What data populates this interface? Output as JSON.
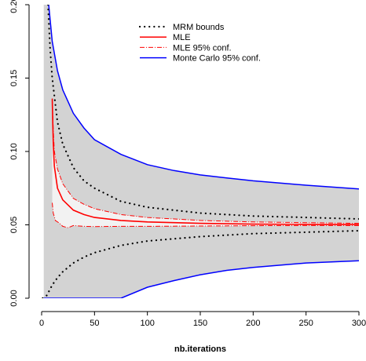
{
  "chart_data": {
    "type": "line",
    "title": "",
    "xlabel": "nb.iterations",
    "ylabel": "",
    "xlim": [
      0,
      300
    ],
    "ylim": [
      0,
      0.2
    ],
    "x_ticks": [
      "0",
      "50",
      "100",
      "150",
      "200",
      "250",
      "300"
    ],
    "y_ticks": [
      "0.00",
      "0.05",
      "0.10",
      "0.15",
      "0.20"
    ],
    "grid": false,
    "legend_position": "top-center",
    "colors": {
      "band_outer": "#d3d3d3",
      "band_inner": "#f2f2f2",
      "mrm": "#000000",
      "mle": "#ff0000",
      "mle_conf": "#ff0000",
      "mc": "#0000ff"
    },
    "legend": [
      {
        "label": "MRM bounds",
        "style": "dotted",
        "color": "#000000"
      },
      {
        "label": "MLE",
        "style": "solid",
        "color": "#ff0000"
      },
      {
        "label": "MLE 95% conf.",
        "style": "dashdot",
        "color": "#ff0000"
      },
      {
        "label": "Monte Carlo 95% conf.",
        "style": "solid",
        "color": "#0000ff"
      }
    ],
    "series": [
      {
        "name": "Monte Carlo 95% conf.",
        "role": "mc_upper",
        "x": [
          6,
          8,
          10,
          15,
          20,
          30,
          40,
          50,
          75,
          100,
          125,
          150,
          175,
          200,
          250,
          300
        ],
        "y": [
          0.205,
          0.19,
          0.175,
          0.155,
          0.142,
          0.126,
          0.116,
          0.108,
          0.098,
          0.091,
          0.087,
          0.084,
          0.082,
          0.08,
          0.077,
          0.0745
        ]
      },
      {
        "name": "Monte Carlo 95% conf.",
        "role": "mc_lower",
        "x": [
          2,
          75,
          100,
          125,
          150,
          175,
          200,
          250,
          300
        ],
        "y": [
          0,
          0,
          0.0075,
          0.012,
          0.016,
          0.019,
          0.021,
          0.024,
          0.0255
        ]
      },
      {
        "name": "MRM bounds",
        "role": "mrm_upper",
        "x": [
          6,
          8,
          10,
          15,
          20,
          30,
          40,
          50,
          75,
          100,
          150,
          200,
          250,
          300
        ],
        "y": [
          0.2,
          0.17,
          0.15,
          0.12,
          0.105,
          0.089,
          0.08,
          0.075,
          0.066,
          0.062,
          0.058,
          0.056,
          0.055,
          0.054
        ]
      },
      {
        "name": "MRM bounds",
        "role": "mrm_lower",
        "x": [
          1,
          5,
          10,
          15,
          20,
          30,
          40,
          50,
          75,
          100,
          150,
          200,
          250,
          300
        ],
        "y": [
          0,
          0.002,
          0.009,
          0.014,
          0.018,
          0.024,
          0.028,
          0.031,
          0.036,
          0.039,
          0.042,
          0.044,
          0.045,
          0.046
        ]
      },
      {
        "name": "MLE",
        "role": "mle",
        "x": [
          10,
          11,
          12,
          15,
          20,
          30,
          40,
          50,
          75,
          100,
          150,
          200,
          250,
          300
        ],
        "y": [
          0.136,
          0.105,
          0.09,
          0.075,
          0.067,
          0.06,
          0.057,
          0.055,
          0.053,
          0.052,
          0.051,
          0.0505,
          0.0503,
          0.0502
        ]
      },
      {
        "name": "MLE 95% conf.",
        "role": "mle_upper",
        "x": [
          10,
          11,
          12,
          15,
          20,
          30,
          40,
          50,
          75,
          100,
          150,
          200,
          250,
          300
        ],
        "y": [
          0.136,
          0.115,
          0.1,
          0.088,
          0.078,
          0.068,
          0.064,
          0.061,
          0.057,
          0.055,
          0.053,
          0.052,
          0.0515,
          0.051
        ]
      },
      {
        "name": "MLE 95% conf.",
        "role": "mle_lower",
        "x": [
          10,
          11,
          13,
          17,
          20,
          25,
          30,
          40,
          50,
          75,
          100,
          150,
          200,
          250,
          300
        ],
        "y": [
          0.065,
          0.058,
          0.053,
          0.051,
          0.049,
          0.048,
          0.0495,
          0.049,
          0.0488,
          0.049,
          0.049,
          0.0492,
          0.0494,
          0.0495,
          0.0495
        ]
      }
    ]
  }
}
